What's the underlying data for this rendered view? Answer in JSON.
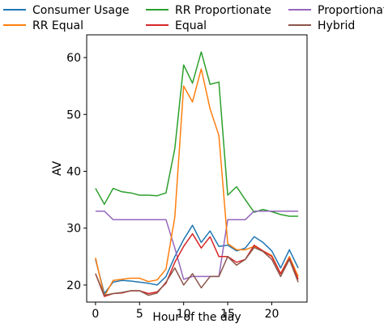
{
  "chart_data": {
    "type": "line",
    "title": "",
    "xlabel": "Hour of the day",
    "ylabel": "AV",
    "xlim": [
      -1,
      24
    ],
    "ylim": [
      17,
      64
    ],
    "xticks": [
      0,
      5,
      10,
      15,
      20
    ],
    "yticks": [
      20,
      30,
      40,
      50,
      60
    ],
    "grid": false,
    "legend": {
      "placement": "top",
      "columns": 3
    },
    "x": [
      0,
      1,
      2,
      3,
      4,
      5,
      6,
      7,
      8,
      9,
      10,
      11,
      12,
      13,
      14,
      15,
      16,
      17,
      18,
      19,
      20,
      21,
      22,
      23
    ],
    "series": [
      {
        "name": "Consumer Usage",
        "color": "#1f77b4",
        "values": [
          24.5,
          18.5,
          20.5,
          20.8,
          20.7,
          20.5,
          20.3,
          20.0,
          21.5,
          25.0,
          28.0,
          30.5,
          27.5,
          29.5,
          26.8,
          27.0,
          26.0,
          26.5,
          28.5,
          27.5,
          26.0,
          23.0,
          26.2,
          23.0
        ]
      },
      {
        "name": "RR Proportionate",
        "color": "#2ca02c",
        "values": [
          37.0,
          34.2,
          37.0,
          36.4,
          36.2,
          35.8,
          35.8,
          35.7,
          36.2,
          44.0,
          58.7,
          55.5,
          61.0,
          55.3,
          55.7,
          35.8,
          37.3,
          35.0,
          32.8,
          33.3,
          32.9,
          32.4,
          32.1,
          32.1
        ]
      },
      {
        "name": "Proportionate",
        "color": "#9467bd",
        "values": [
          33.0,
          33.0,
          31.5,
          31.5,
          31.5,
          31.5,
          31.5,
          31.5,
          31.5,
          26.5,
          21.0,
          21.5,
          21.5,
          21.5,
          21.5,
          31.5,
          31.5,
          31.5,
          33.0,
          33.0,
          33.0,
          33.0,
          33.0,
          33.0
        ]
      },
      {
        "name": "RR Equal",
        "color": "#ff7f0e",
        "values": [
          24.8,
          18.0,
          20.8,
          21.0,
          21.2,
          21.2,
          20.6,
          20.9,
          22.8,
          32.0,
          55.0,
          52.2,
          58.0,
          51.0,
          46.3,
          27.3,
          26.2,
          26.2,
          26.8,
          26.0,
          25.2,
          22.0,
          25.0,
          21.5
        ]
      },
      {
        "name": "Equal",
        "color": "#d62728",
        "values": [
          22.0,
          18.0,
          18.5,
          18.6,
          19.0,
          19.0,
          18.5,
          18.8,
          20.3,
          24.0,
          26.8,
          29.0,
          26.5,
          28.5,
          25.0,
          25.0,
          24.0,
          24.5,
          27.0,
          26.0,
          25.0,
          22.0,
          24.7,
          21.0
        ]
      },
      {
        "name": "Hybrid",
        "color": "#8c564b",
        "values": [
          22.0,
          18.2,
          18.5,
          18.7,
          19.0,
          19.0,
          18.2,
          18.6,
          20.5,
          23.0,
          20.0,
          22.0,
          19.5,
          21.5,
          21.5,
          25.0,
          23.5,
          24.5,
          26.6,
          25.9,
          24.5,
          21.5,
          24.5,
          20.5
        ]
      }
    ]
  }
}
